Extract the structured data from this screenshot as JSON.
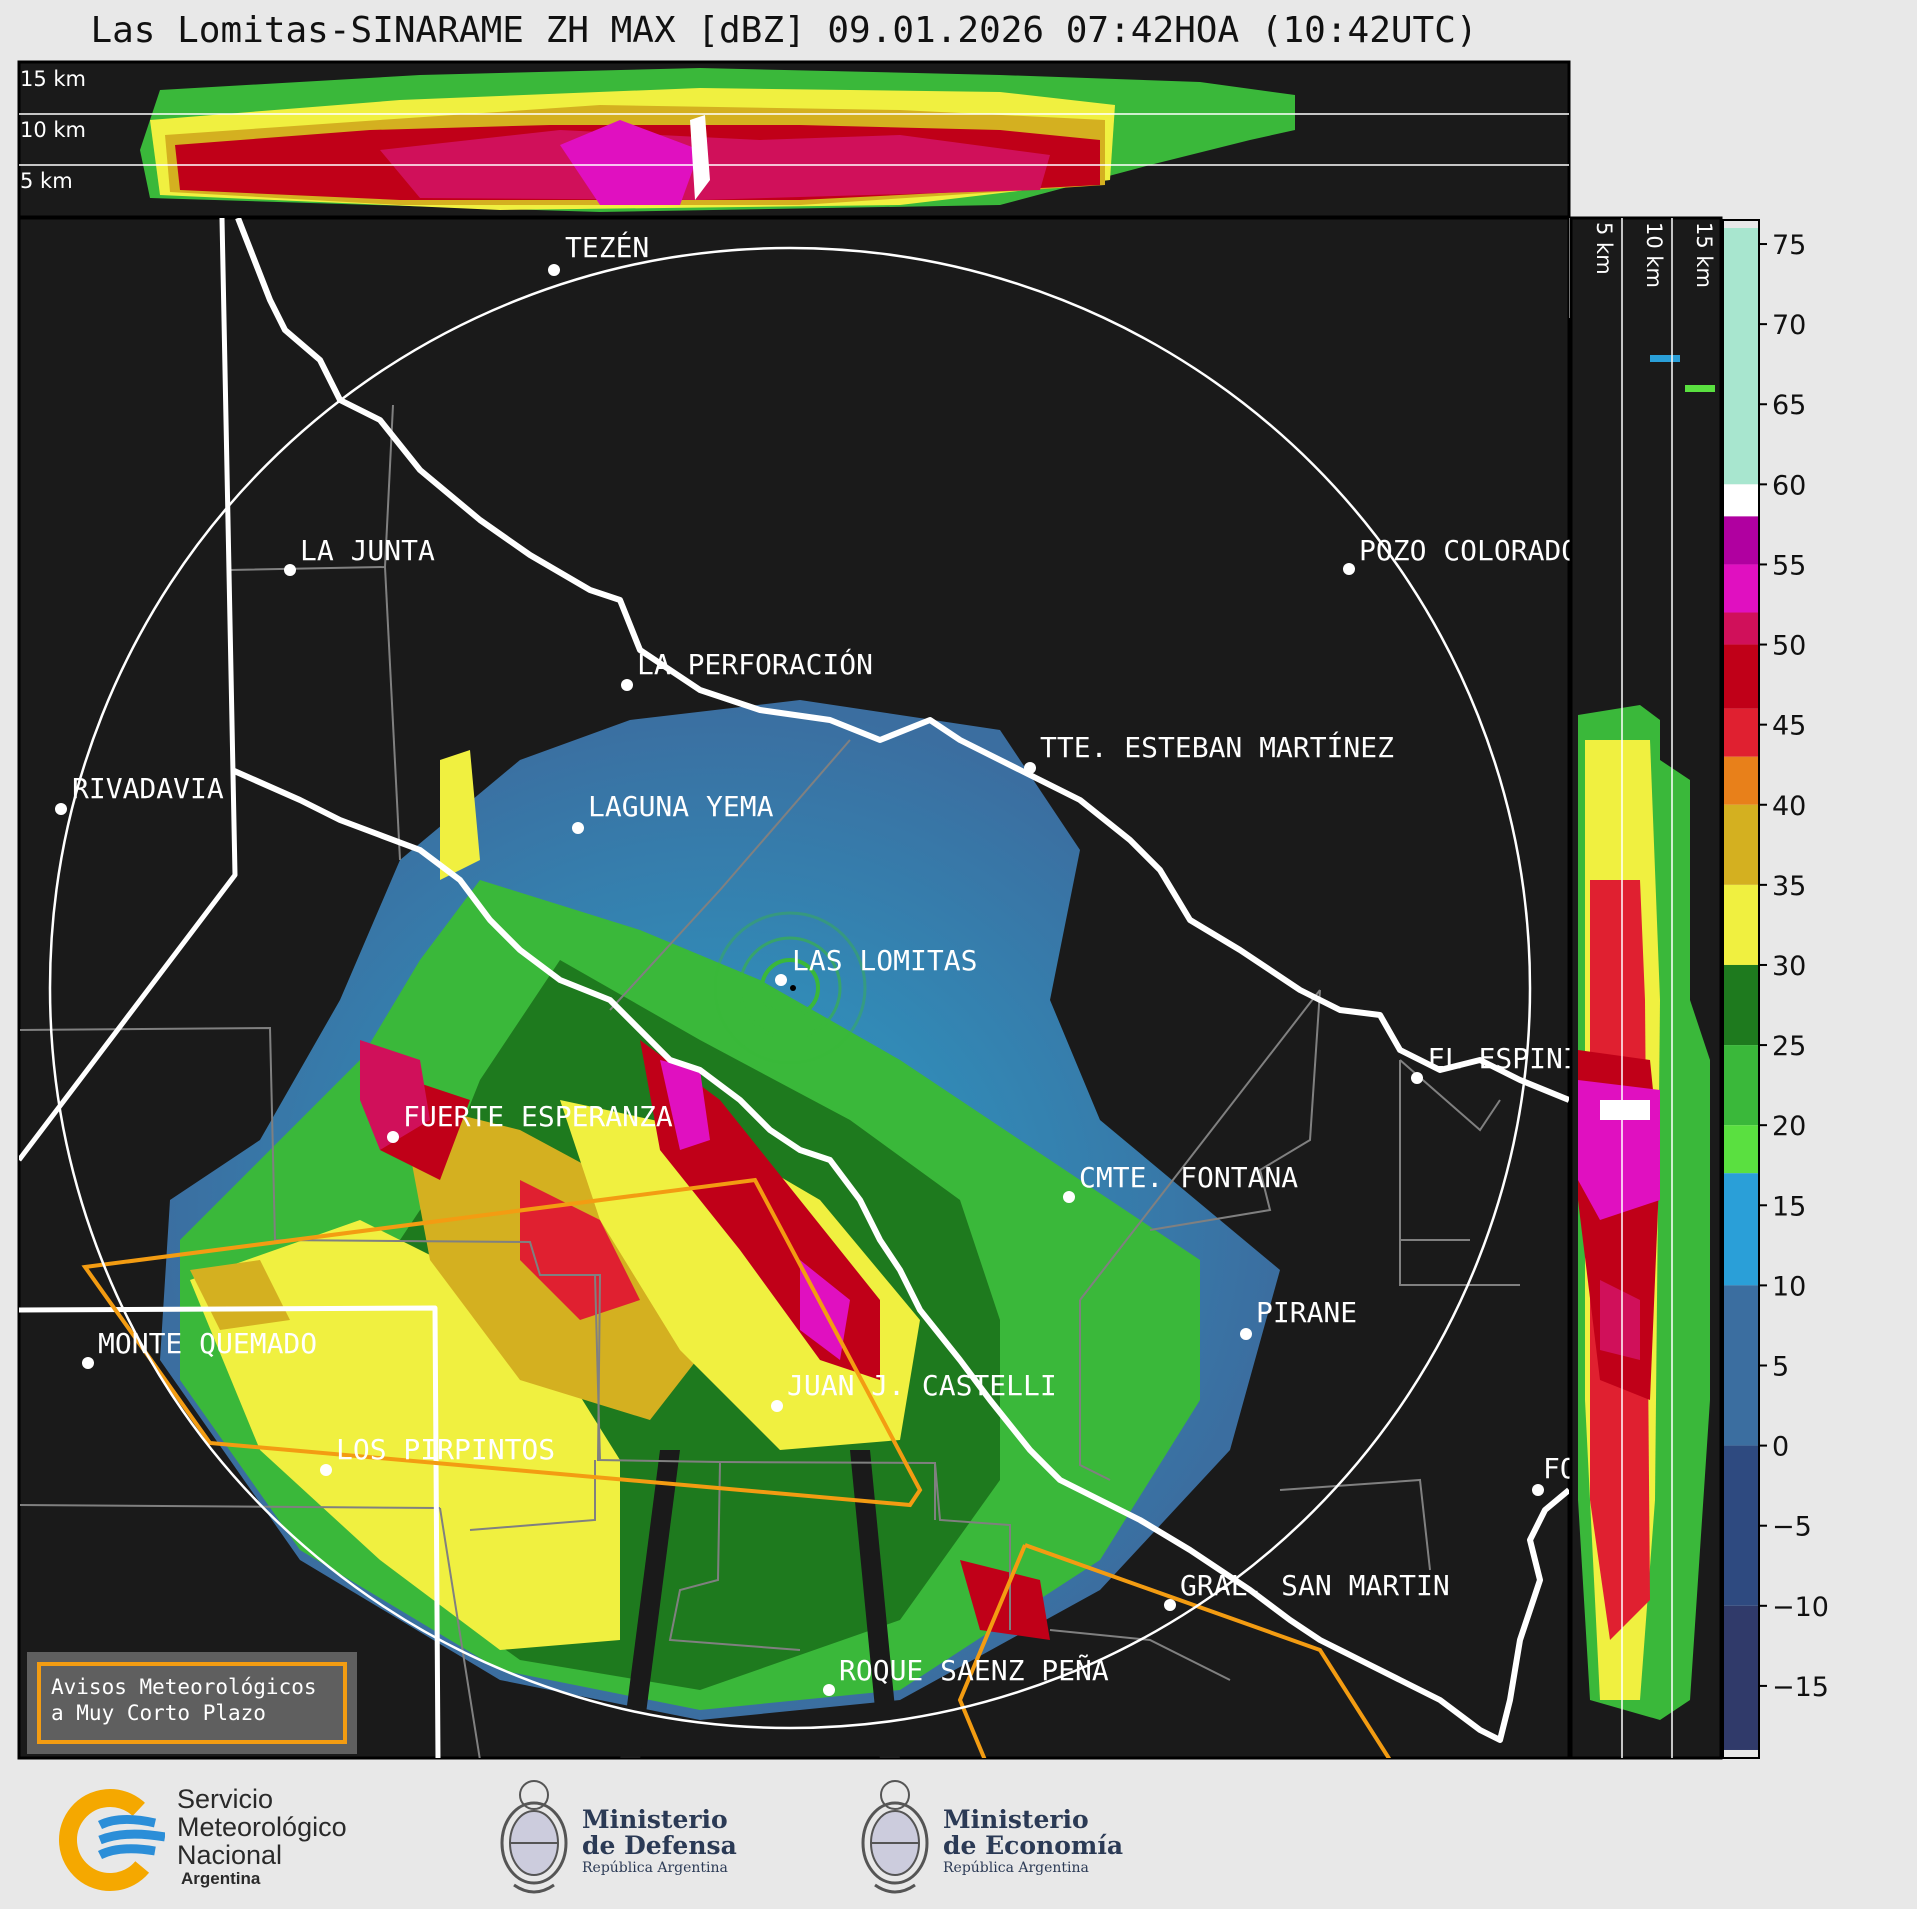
{
  "title": "Las Lomitas-SINARAME ZH MAX [dBZ] 09.01.2026 07:42HOA (10:42UTC)",
  "top_panel_labels": [
    "15 km",
    "10 km",
    "5 km"
  ],
  "side_panel_labels": [
    "5 km",
    "10 km",
    "15 km"
  ],
  "colorbar": {
    "ticks": [
      "75",
      "70",
      "65",
      "60",
      "55",
      "50",
      "45",
      "40",
      "35",
      "30",
      "25",
      "20",
      "15",
      "10",
      "5",
      "0",
      "−5",
      "−10",
      "−15"
    ],
    "scale": [
      {
        "from": 60,
        "to": 76,
        "color": "#a8e6cf"
      },
      {
        "from": 58,
        "to": 60,
        "color": "#ffffff"
      },
      {
        "from": 55,
        "to": 58,
        "color": "#b000a0"
      },
      {
        "from": 52,
        "to": 55,
        "color": "#e010c0"
      },
      {
        "from": 50,
        "to": 52,
        "color": "#d0105a"
      },
      {
        "from": 46,
        "to": 50,
        "color": "#c00018"
      },
      {
        "from": 43,
        "to": 46,
        "color": "#e02030"
      },
      {
        "from": 40,
        "to": 43,
        "color": "#e8801a"
      },
      {
        "from": 35,
        "to": 40,
        "color": "#d4b020"
      },
      {
        "from": 30,
        "to": 35,
        "color": "#f0f040"
      },
      {
        "from": 25,
        "to": 30,
        "color": "#1e7a1e"
      },
      {
        "from": 20,
        "to": 25,
        "color": "#3ab83a"
      },
      {
        "from": 17,
        "to": 20,
        "color": "#5ae040"
      },
      {
        "from": 10,
        "to": 17,
        "color": "#2a9fd8"
      },
      {
        "from": 0,
        "to": 10,
        "color": "#3b6ea0"
      },
      {
        "from": -10,
        "to": 0,
        "color": "#2e4a80"
      },
      {
        "from": -19,
        "to": -10,
        "color": "#303a6a"
      }
    ]
  },
  "places": [
    {
      "name": "TEZÉN"
    },
    {
      "name": "LA JUNTA"
    },
    {
      "name": "POZO COLORADO"
    },
    {
      "name": "LA PERFORACIÓN"
    },
    {
      "name": "TTE. ESTEBAN MARTÍNEZ"
    },
    {
      "name": "RIVADAVIA"
    },
    {
      "name": "LAGUNA YEMA"
    },
    {
      "name": "LAS LOMITAS"
    },
    {
      "name": "EL ESPINILLO"
    },
    {
      "name": "FUERTE ESPERANZA"
    },
    {
      "name": "CMTE. FONTANA"
    },
    {
      "name": "PIRANE"
    },
    {
      "name": "MONTE QUEMADO"
    },
    {
      "name": "JUAN J. CASTELLI"
    },
    {
      "name": "LOS PIRPINTOS"
    },
    {
      "name": "GRAL. SAN MARTIN"
    },
    {
      "name": "ROQUE SAENZ PEÑA"
    },
    {
      "name": "FORMOSA"
    }
  ],
  "warning_box": {
    "line1": "Avisos Meteorológicos",
    "line2": "a Muy Corto Plazo"
  },
  "logos": {
    "smn": {
      "line1": "Servicio",
      "line2": "Meteorológico",
      "line3": "Nacional",
      "line4": "Argentina"
    },
    "defensa": {
      "line1": "Ministerio",
      "line2": "de Defensa",
      "line3": "República Argentina"
    },
    "economia": {
      "line1": "Ministerio",
      "line2": "de Economía",
      "line3": "República Argentina"
    }
  },
  "colors": {
    "background": "#1a1a1a",
    "border": "#ffffff",
    "province": "#808080",
    "warning": "#f39c12",
    "page": "#e8e8e8"
  }
}
